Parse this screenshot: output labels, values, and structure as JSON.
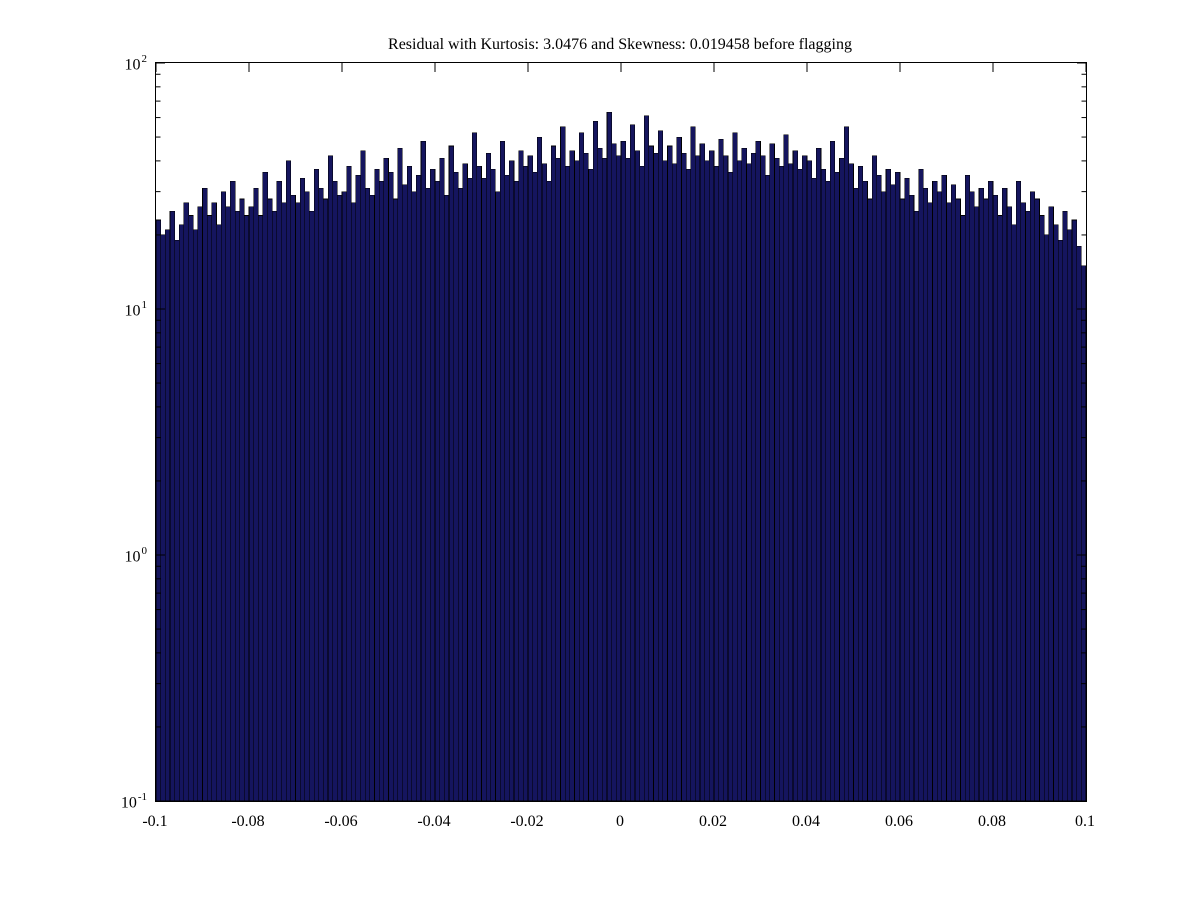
{
  "chart_data": {
    "type": "bar",
    "title": "Residual with Kurtosis: 3.0476 and Skewness: 0.019458 before flagging",
    "xlabel": "",
    "ylabel": "",
    "x_range": [
      -0.1,
      0.1
    ],
    "y_scale": "log",
    "y_range_exponents": [
      -1,
      2
    ],
    "y_tick_exponents": [
      2,
      1,
      0,
      -1
    ],
    "x_tick_values": [
      -0.1,
      -0.08,
      -0.06,
      -0.04,
      -0.02,
      0,
      0.02,
      0.04,
      0.06,
      0.08,
      0.1
    ],
    "x_tick_labels": [
      "-0.1",
      "-0.08",
      "-0.06",
      "-0.04",
      "-0.02",
      "0",
      "0.02",
      "0.04",
      "0.06",
      "0.08",
      "0.1"
    ],
    "grid": false,
    "legend": "none",
    "bin_width": 0.001,
    "bar_color": "#15155e",
    "bar_edge_color": "#000000",
    "values": [
      23,
      20,
      21,
      25,
      19,
      22,
      27,
      24,
      21,
      26,
      31,
      24,
      27,
      22,
      30,
      26,
      33,
      25,
      28,
      24,
      26,
      31,
      24,
      36,
      28,
      25,
      33,
      27,
      40,
      29,
      27,
      34,
      30,
      25,
      37,
      31,
      28,
      42,
      33,
      29,
      30,
      38,
      27,
      35,
      44,
      31,
      29,
      37,
      33,
      41,
      36,
      28,
      45,
      32,
      38,
      30,
      35,
      48,
      31,
      37,
      33,
      41,
      29,
      46,
      36,
      31,
      39,
      34,
      52,
      38,
      34,
      43,
      37,
      30,
      48,
      35,
      40,
      33,
      44,
      38,
      42,
      36,
      50,
      39,
      33,
      46,
      41,
      55,
      38,
      44,
      40,
      52,
      43,
      37,
      58,
      45,
      41,
      63,
      47,
      42,
      48,
      41,
      56,
      44,
      38,
      61,
      46,
      43,
      53,
      40,
      46,
      39,
      50,
      43,
      37,
      55,
      42,
      47,
      40,
      44,
      38,
      49,
      42,
      36,
      52,
      40,
      45,
      39,
      43,
      48,
      42,
      35,
      47,
      41,
      38,
      51,
      39,
      44,
      37,
      42,
      40,
      34,
      45,
      37,
      33,
      48,
      36,
      41,
      55,
      39,
      31,
      38,
      33,
      28,
      42,
      35,
      30,
      37,
      32,
      36,
      28,
      34,
      29,
      25,
      37,
      31,
      27,
      33,
      30,
      35,
      27,
      32,
      28,
      24,
      35,
      30,
      26,
      31,
      28,
      33,
      29,
      24,
      31,
      26,
      22,
      33,
      27,
      25,
      30,
      28,
      24,
      20,
      26,
      22,
      19,
      25,
      21,
      23,
      18,
      15
    ]
  }
}
